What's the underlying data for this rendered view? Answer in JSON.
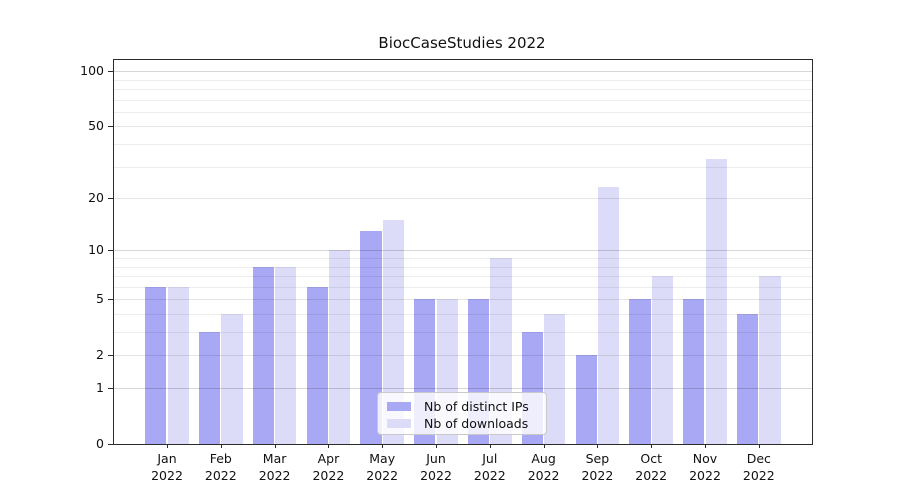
{
  "chart_data": {
    "type": "bar",
    "title": "BiocCaseStudies 2022",
    "categories": [
      {
        "month": "Jan",
        "year": "2022"
      },
      {
        "month": "Feb",
        "year": "2022"
      },
      {
        "month": "Mar",
        "year": "2022"
      },
      {
        "month": "Apr",
        "year": "2022"
      },
      {
        "month": "May",
        "year": "2022"
      },
      {
        "month": "Jun",
        "year": "2022"
      },
      {
        "month": "Jul",
        "year": "2022"
      },
      {
        "month": "Aug",
        "year": "2022"
      },
      {
        "month": "Sep",
        "year": "2022"
      },
      {
        "month": "Oct",
        "year": "2022"
      },
      {
        "month": "Nov",
        "year": "2022"
      },
      {
        "month": "Dec",
        "year": "2022"
      }
    ],
    "series": [
      {
        "name": "Nb of distinct IPs",
        "color": "#a8a8f5",
        "values": [
          6,
          3,
          8,
          6,
          13,
          5,
          5,
          3,
          2,
          5,
          5,
          4
        ]
      },
      {
        "name": "Nb of downloads",
        "color": "#dcdcf8",
        "values": [
          6,
          4,
          8,
          10,
          15,
          5,
          9,
          4,
          23,
          7,
          33,
          7
        ]
      }
    ],
    "xlabel": "",
    "ylabel": "",
    "yscale": "log10(1+v)",
    "ylim": [
      0,
      115
    ],
    "yticks": [
      0,
      1,
      2,
      5,
      10,
      20,
      50,
      100
    ],
    "gridlines_major": [
      1,
      10,
      100
    ],
    "gridlines_labeled": [
      2,
      5,
      20,
      50
    ],
    "gridlines_minor": [
      3,
      4,
      6,
      7,
      8,
      9,
      30,
      40,
      60,
      70,
      80,
      90
    ],
    "grid": true,
    "legend_position": "lower center"
  }
}
